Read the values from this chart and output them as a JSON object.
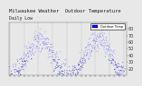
{
  "title": "Milwaukee Weather  Outdoor Temperature",
  "subtitle": "Daily Low",
  "bg_color": "#e8e8e8",
  "plot_bg_color": "#e8e8e8",
  "dot_color_cold": "#0000cc",
  "dot_color_warm": "#6666ff",
  "legend_color": "#0000ff",
  "legend_label": "Outdoor Temp",
  "ylim": [
    10,
    90
  ],
  "yticks": [
    20,
    30,
    40,
    50,
    60,
    70,
    80
  ],
  "ylabel_fontsize": 3.5,
  "title_fontsize": 4.0,
  "num_points": 730,
  "seed": 7
}
